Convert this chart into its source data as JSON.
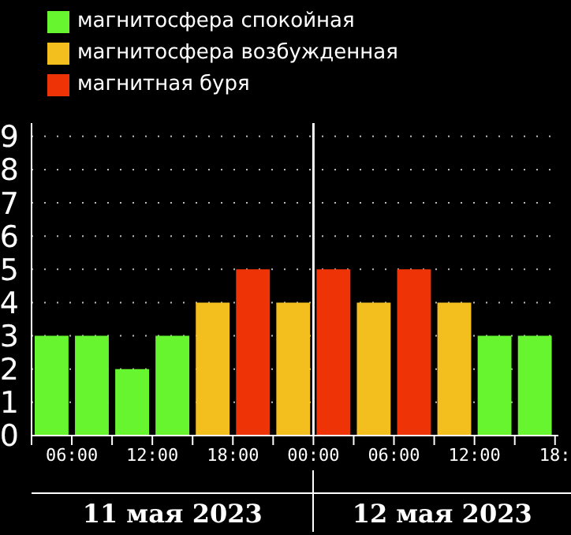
{
  "chart_data": {
    "type": "bar",
    "stacked": true,
    "x": [
      "2023-05-11T04:30",
      "2023-05-11T07:30",
      "2023-05-11T10:30",
      "2023-05-11T13:30",
      "2023-05-11T16:30",
      "2023-05-11T19:30",
      "2023-05-11T22:30",
      "2023-05-12T01:30",
      "2023-05-12T04:30",
      "2023-05-12T07:30",
      "2023-05-12T10:30",
      "2023-05-12T13:30",
      "2023-05-12T16:30"
    ],
    "series": [
      {
        "name": "магнитосфера спокойная",
        "color": "#66f52e",
        "values": [
          3,
          3,
          2,
          3,
          null,
          null,
          null,
          null,
          null,
          null,
          null,
          3,
          3
        ]
      },
      {
        "name": "магнитосфера возбужденная",
        "color": "#f2bf1f",
        "values": [
          null,
          null,
          null,
          null,
          4,
          null,
          4,
          null,
          4,
          null,
          4,
          null,
          null
        ]
      },
      {
        "name": "магнитная буря",
        "color": "#ee3306",
        "values": [
          null,
          null,
          null,
          null,
          null,
          5,
          null,
          5,
          null,
          5,
          null,
          null,
          null
        ]
      }
    ],
    "xlim": [
      "2023-05-11T03:00",
      "2023-05-12T18:15"
    ],
    "xticks": [
      {
        "value": "2023-05-11T03:00",
        "label": null
      },
      {
        "value": "2023-05-11T06:00",
        "label": "06:00"
      },
      {
        "value": "2023-05-11T09:00",
        "label": null
      },
      {
        "value": "2023-05-11T12:00",
        "label": "12:00"
      },
      {
        "value": "2023-05-11T15:00",
        "label": null
      },
      {
        "value": "2023-05-11T18:00",
        "label": "18:00"
      },
      {
        "value": "2023-05-11T21:00",
        "label": null
      },
      {
        "value": "2023-05-12T00:00",
        "label": "00:00"
      },
      {
        "value": "2023-05-12T03:00",
        "label": null
      },
      {
        "value": "2023-05-12T06:00",
        "label": "06:00"
      },
      {
        "value": "2023-05-12T09:00",
        "label": null
      },
      {
        "value": "2023-05-12T12:00",
        "label": "12:00"
      },
      {
        "value": "2023-05-12T15:00",
        "label": null
      },
      {
        "value": "2023-05-12T18:00",
        "label": "18:"
      }
    ],
    "ylim": [
      0,
      9.4
    ],
    "yticks": [
      0,
      1,
      2,
      3,
      4,
      5,
      6,
      7,
      8,
      9
    ],
    "grid": "y",
    "line_style": "dotted",
    "legend": "top left",
    "ref_lines": [
      {
        "axis": "x",
        "value": "2023-05-12T00:00",
        "color": "#ffffff"
      }
    ],
    "annotations": [
      "11 мая 2023",
      "12 мая 2023"
    ]
  }
}
